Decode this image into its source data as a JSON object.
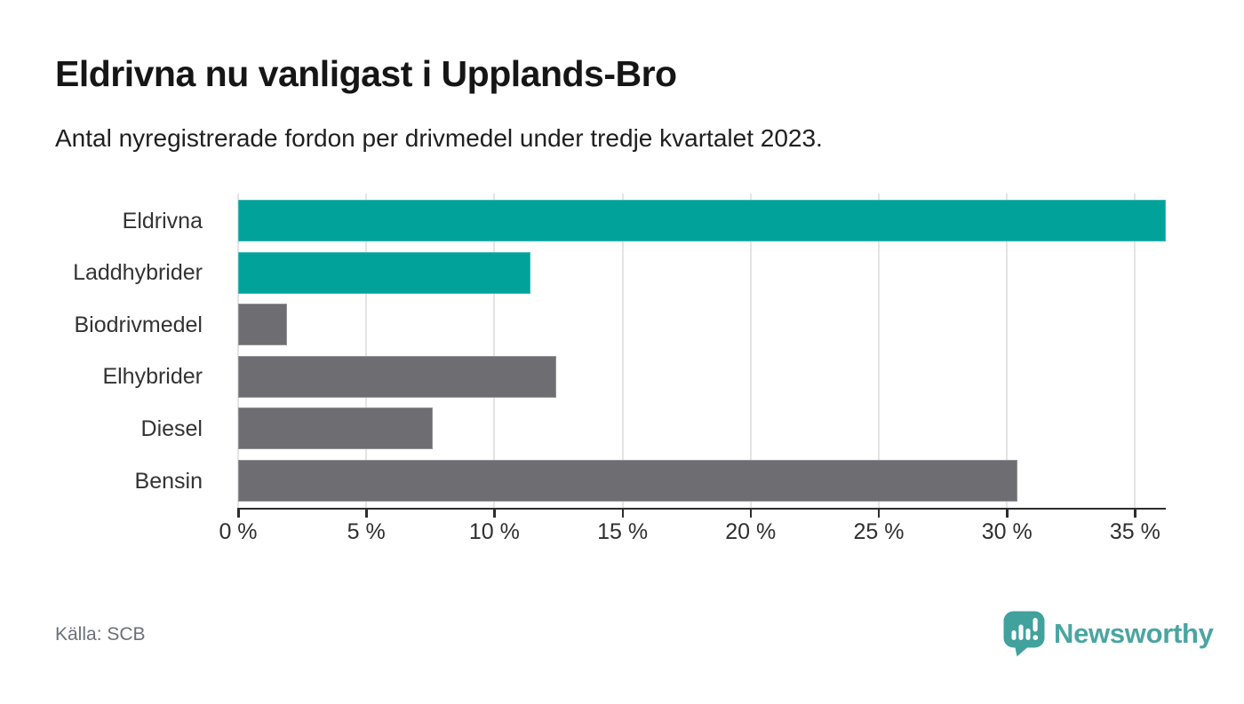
{
  "header": {
    "title": "Eldrivna nu vanligast i Upplands-Bro",
    "subtitle": "Antal nyregistrerade fordon per drivmedel under tredje kvartalet 2023."
  },
  "chart_data": {
    "type": "bar",
    "orientation": "horizontal",
    "title": "Eldrivna nu vanligast i Upplands-Bro",
    "subtitle": "Antal nyregistrerade fordon per drivmedel under tredje kvartalet 2023.",
    "categories": [
      "Eldrivna",
      "Laddhybrider",
      "Biodrivmedel",
      "Elhybrider",
      "Diesel",
      "Bensin"
    ],
    "values": [
      36.2,
      11.4,
      1.9,
      12.4,
      7.6,
      30.4
    ],
    "unit": "%",
    "bar_colors": [
      "#00a29a",
      "#00a29a",
      "#6e6d72",
      "#6e6d72",
      "#6e6d72",
      "#6e6d72"
    ],
    "xlabel": "",
    "ylabel": "",
    "grid": true,
    "legend": false,
    "x_axis": {
      "min": 0,
      "max": 36.2,
      "tick_values": [
        0,
        5,
        10,
        15,
        20,
        25,
        30,
        35
      ],
      "tick_labels": [
        "0 %",
        "5 %",
        "10 %",
        "15 %",
        "20 %",
        "25 %",
        "30 %",
        "35 %"
      ]
    }
  },
  "footer": {
    "source": "Källa: SCB",
    "logo_text": "Newsworthy"
  },
  "colors": {
    "accent_teal": "#00a29a",
    "bar_gray": "#6e6d72",
    "gridline": "#e4e4e4",
    "axis": "#2d2d2d",
    "logo_icon_teal": "#41a19c",
    "logo_text_teal": "#4aa5a1"
  }
}
